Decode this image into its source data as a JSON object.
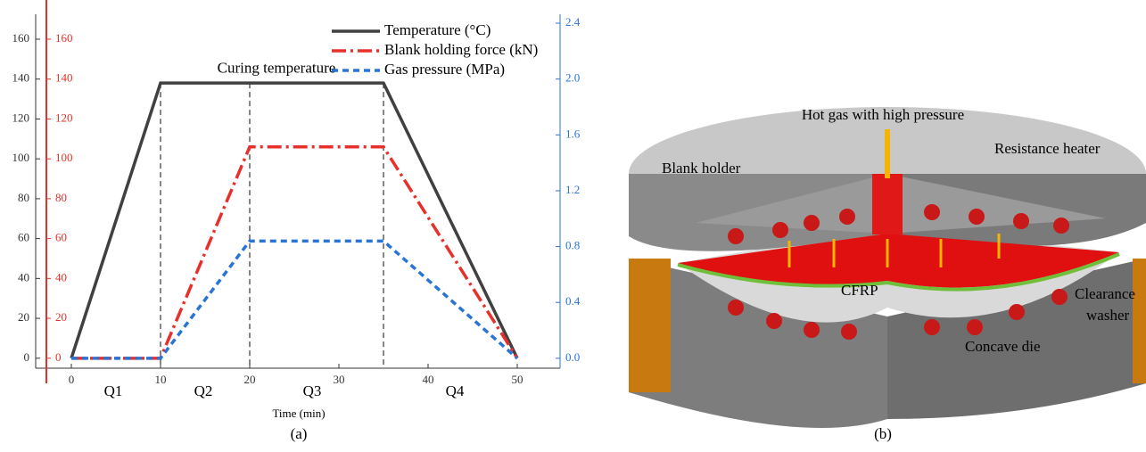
{
  "chart_data": {
    "type": "line",
    "panel_label": "(a)",
    "xlabel": "Time (min)",
    "xlim": [
      -1.3,
      54.8
    ],
    "xticks": [
      0,
      10,
      20,
      30,
      40,
      50
    ],
    "ylim": [
      -5,
      172.5
    ],
    "yticks": [
      0,
      20,
      40,
      60,
      80,
      100,
      120,
      140,
      160
    ],
    "y2lim": [
      -0.071,
      2.464
    ],
    "y2ticks": [
      {
        "value": 0,
        "label": "0.0"
      },
      {
        "value": 0.4,
        "label": "0.4"
      },
      {
        "value": 0.8,
        "label": "0.8"
      },
      {
        "value": 1.2,
        "label": "1.2"
      },
      {
        "value": 1.6,
        "label": "1.6"
      },
      {
        "value": 2.0,
        "label": "2.0"
      },
      {
        "value": 2.4,
        "label": "2.4"
      }
    ],
    "series": [
      {
        "name": "Temperature (°C)",
        "color": "#404040",
        "dash": "solid",
        "x": [
          0,
          10,
          35,
          50
        ],
        "values": [
          0,
          138,
          138,
          0
        ]
      },
      {
        "name": "Blank holding force (kN)",
        "color": "#e8302a",
        "dash": "dashdot",
        "x": [
          0,
          10,
          20,
          35,
          50
        ],
        "values": [
          0,
          0,
          106,
          106,
          0
        ]
      },
      {
        "name": "Gas pressure (MPa)",
        "color": "#2a74d6",
        "dash": "dash",
        "axis": "y2",
        "x": [
          0,
          10,
          20,
          35,
          50
        ],
        "values": [
          0,
          0,
          0.84,
          0.84,
          0
        ]
      }
    ],
    "phase_lines": [
      10,
      20,
      35
    ],
    "phases": [
      {
        "label": "Q1",
        "x": 4.7
      },
      {
        "label": "Q2",
        "x": 14.8
      },
      {
        "label": "Q3",
        "x": 27
      },
      {
        "label": "Q4",
        "x": 43
      }
    ],
    "annotations": [
      {
        "text": "Curing temperature",
        "x": 23,
        "y": 145
      }
    ]
  },
  "diagram": {
    "panel_label": "(b)",
    "labels": {
      "gas": "Hot gas with high pressure",
      "holder": "Blank holder",
      "heater": "Resistance heater",
      "cfrp": "CFRP",
      "washer": [
        "Clearance",
        "washer"
      ],
      "die": "Concave die"
    }
  }
}
